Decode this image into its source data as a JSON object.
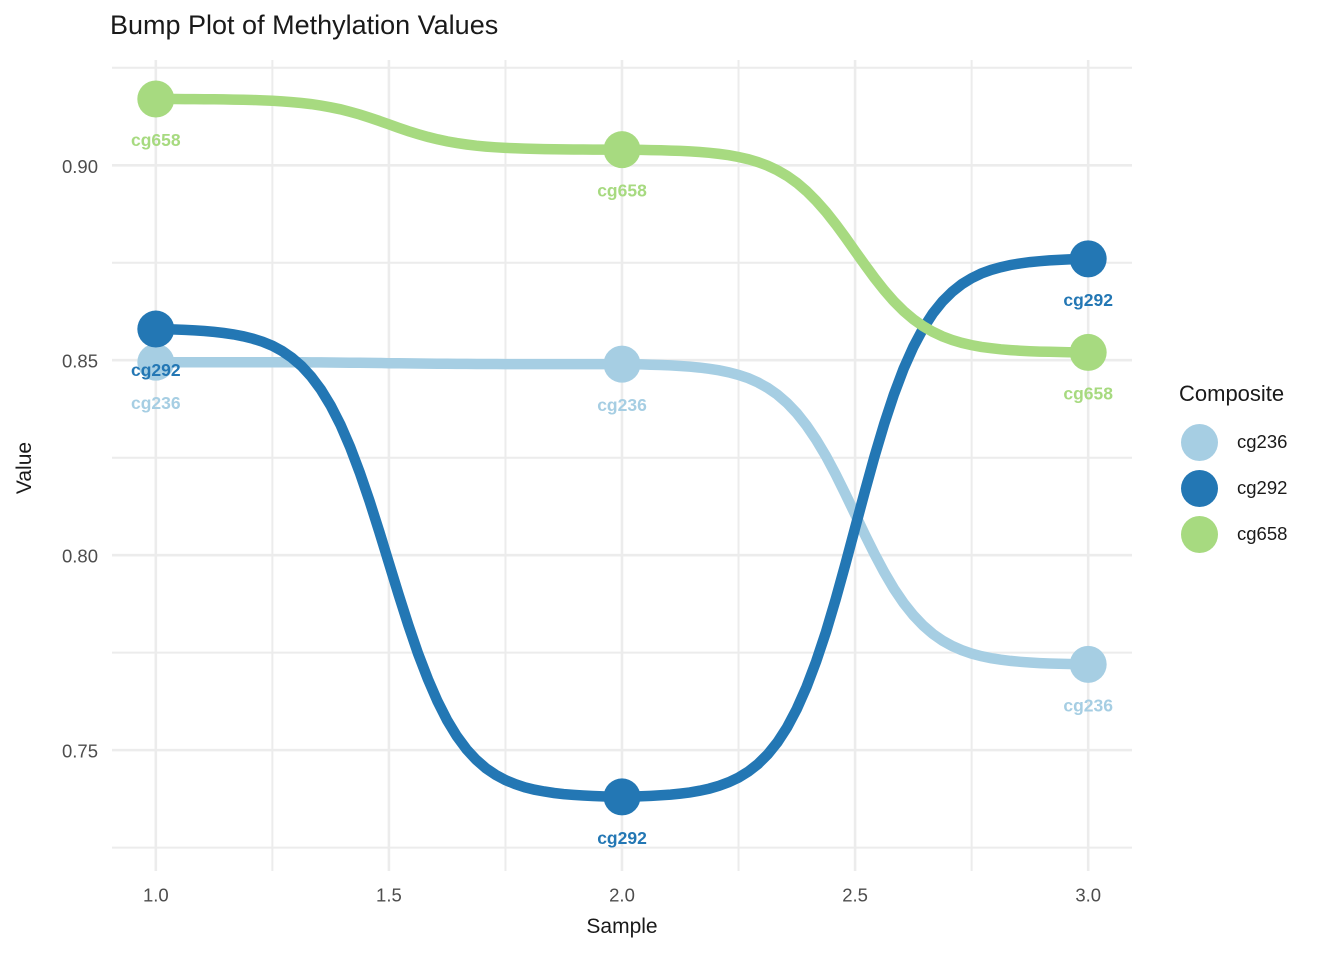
{
  "title": "Bump Plot of Methylation Values",
  "chart_data": {
    "type": "line",
    "subtype": "bump",
    "title": "Bump Plot of Methylation Values",
    "xlabel": "Sample",
    "ylabel": "Value",
    "x": [
      1,
      2,
      3
    ],
    "series": [
      {
        "name": "cg236",
        "color": "#a6cee3",
        "values": [
          0.8495,
          0.849,
          0.772
        ]
      },
      {
        "name": "cg292",
        "color": "#2377b4",
        "values": [
          0.858,
          0.738,
          0.876
        ]
      },
      {
        "name": "cg658",
        "color": "#a7da80",
        "values": [
          0.917,
          0.904,
          0.852
        ]
      }
    ],
    "x_ticks": [
      1.0,
      1.5,
      2.0,
      2.5,
      3.0
    ],
    "x_tick_labels": [
      "1.0",
      "1.5",
      "2.0",
      "2.5",
      "3.0"
    ],
    "x_minor_ticks": [
      1.25,
      1.75,
      2.25,
      2.75
    ],
    "y_ticks": [
      0.75,
      0.8,
      0.85,
      0.9
    ],
    "y_tick_labels": [
      "0.75",
      "0.80",
      "0.85",
      "0.90"
    ],
    "y_minor_ticks": [
      0.725,
      0.775,
      0.825,
      0.875,
      0.925
    ],
    "xlim": [
      0.906,
      3.094
    ],
    "ylim": [
      0.719,
      0.927
    ],
    "grid": "on",
    "legend_position": "right",
    "point_labels_follow_series_name": true
  },
  "legend": {
    "title": "Composite",
    "items": [
      {
        "label": "cg236",
        "color": "#a6cee3"
      },
      {
        "label": "cg292",
        "color": "#2377b4"
      },
      {
        "label": "cg658",
        "color": "#a7da80"
      }
    ]
  },
  "colors": {
    "background": "#ffffff",
    "grid": "#ececec",
    "tick_label": "#4d4d4d",
    "text": "#1a1a1a"
  }
}
